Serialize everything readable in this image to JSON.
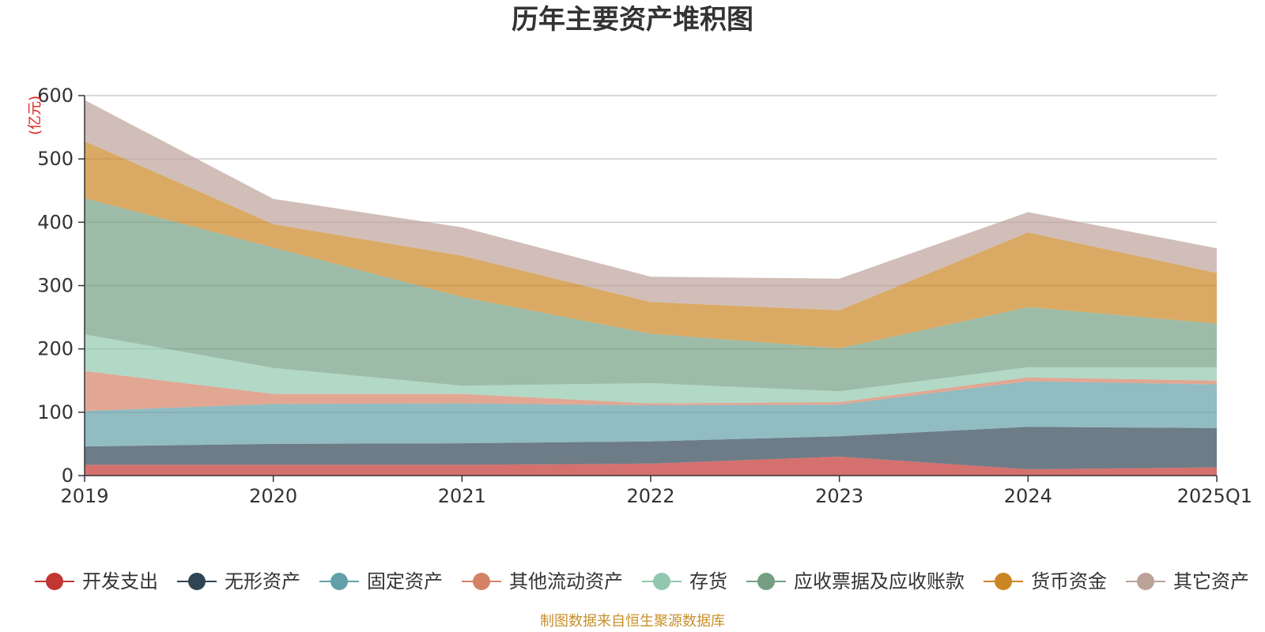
{
  "chart_data": {
    "type": "area",
    "stacked": true,
    "title": "历年主要资产堆积图",
    "ylabel": "(亿元)",
    "xlabel": "",
    "categories": [
      "2019",
      "2020",
      "2021",
      "2022",
      "2023",
      "2024",
      "2025Q1"
    ],
    "ylim": [
      0,
      600
    ],
    "yticks": [
      0,
      100,
      200,
      300,
      400,
      500,
      600
    ],
    "grid": true,
    "legend_position": "bottom",
    "series": [
      {
        "name": "开发支出",
        "color": "#c23531",
        "values": [
          17,
          17,
          17,
          19,
          30,
          10,
          13
        ]
      },
      {
        "name": "无形资产",
        "color": "#2f4554",
        "values": [
          29,
          33,
          34,
          35,
          32,
          67,
          62
        ]
      },
      {
        "name": "固定资产",
        "color": "#61a0a8",
        "values": [
          56,
          63,
          63,
          57,
          50,
          72,
          69
        ]
      },
      {
        "name": "其他流动资产",
        "color": "#d48265",
        "values": [
          63,
          16,
          15,
          3,
          4,
          6,
          6
        ]
      },
      {
        "name": "存货",
        "color": "#91c7ae",
        "values": [
          58,
          41,
          13,
          32,
          17,
          16,
          21
        ]
      },
      {
        "name": "应收票据及应收账款",
        "color": "#749f83",
        "values": [
          215,
          190,
          140,
          78,
          68,
          95,
          69
        ]
      },
      {
        "name": "货币资金",
        "color": "#ca8622",
        "values": [
          90,
          37,
          65,
          50,
          60,
          118,
          80
        ]
      },
      {
        "name": "其它资产",
        "color": "#bda29a",
        "values": [
          65,
          40,
          45,
          40,
          50,
          32,
          39
        ]
      }
    ]
  },
  "footer": {
    "source_text": "制图数据来自恒生聚源数据库"
  }
}
